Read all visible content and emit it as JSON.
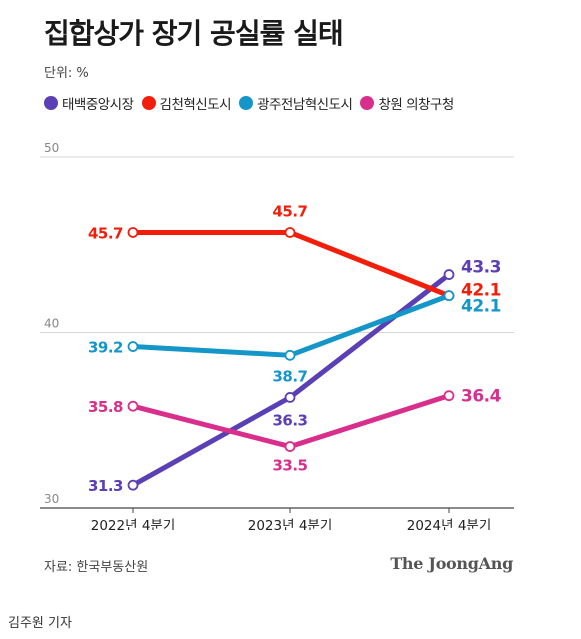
{
  "header": {
    "title": "집합상가 장기 공실률 실태",
    "unit": "단위: %"
  },
  "legend": [
    {
      "label": "태백중앙시장",
      "color": "#5b3fb5"
    },
    {
      "label": "김천혁신도시",
      "color": "#f01e0a"
    },
    {
      "label": "광주전남혁신도시",
      "color": "#1596c8"
    },
    {
      "label": "창원 의창구청",
      "color": "#d92f8c"
    }
  ],
  "footer": {
    "source": "자료: 한국부동산원",
    "logo": "The JoongAng",
    "credit": "김주원 기자"
  },
  "chart_data": {
    "type": "line",
    "categories": [
      "2022년 4분기",
      "2023년 4분기",
      "2024년 4분기"
    ],
    "yticks": [
      "30",
      "40",
      "50"
    ],
    "ylim": [
      30,
      50
    ],
    "grid": true,
    "legend_position": "top-left",
    "series": [
      {
        "name": "태백중앙시장",
        "color": "#5b3fb5",
        "values": [
          31.3,
          36.3,
          43.3
        ],
        "labels": [
          "31.3",
          "36.3",
          "43.3"
        ]
      },
      {
        "name": "김천혁신도시",
        "color": "#f01e0a",
        "values": [
          45.7,
          45.7,
          42.1
        ],
        "labels": [
          "45.7",
          "45.7",
          "42.1"
        ]
      },
      {
        "name": "광주전남혁신도시",
        "color": "#1596c8",
        "values": [
          39.2,
          38.7,
          42.1
        ],
        "labels": [
          "39.2",
          "38.7",
          "42.1"
        ]
      },
      {
        "name": "창원 의창구청",
        "color": "#d92f8c",
        "values": [
          35.8,
          33.5,
          36.4
        ],
        "labels": [
          "35.8",
          "33.5",
          "36.4"
        ]
      }
    ]
  }
}
